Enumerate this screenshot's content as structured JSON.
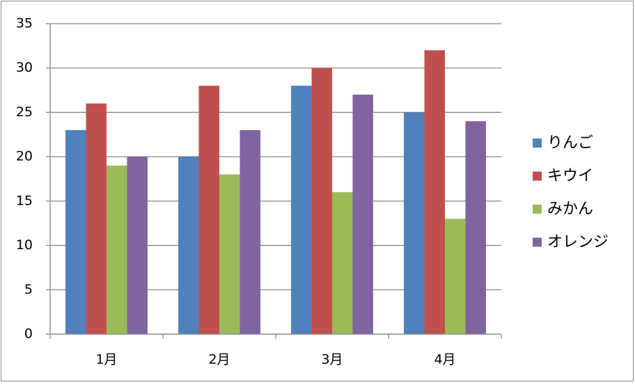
{
  "chart_data": {
    "type": "bar",
    "categories": [
      "1月",
      "2月",
      "3月",
      "4月"
    ],
    "series": [
      {
        "name": "りんご",
        "color": "#4f81bd",
        "values": [
          23,
          20,
          28,
          25
        ]
      },
      {
        "name": "キウイ",
        "color": "#c0504d",
        "values": [
          26,
          28,
          30,
          32
        ]
      },
      {
        "name": "みかん",
        "color": "#9bbb59",
        "values": [
          19,
          18,
          16,
          13
        ]
      },
      {
        "name": "オレンジ",
        "color": "#8064a2",
        "values": [
          20,
          23,
          27,
          24
        ]
      }
    ],
    "ylim": [
      0,
      35
    ],
    "yticks": [
      0,
      5,
      10,
      15,
      20,
      25,
      30,
      35
    ],
    "grid": true,
    "legend": "right"
  }
}
